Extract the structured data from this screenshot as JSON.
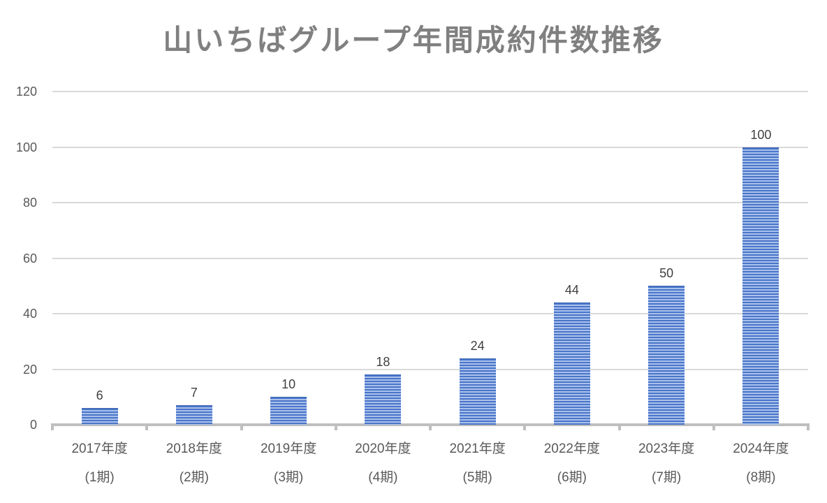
{
  "title": "山いちばグループ年間成約件数推移",
  "chart_data": {
    "type": "bar",
    "title": "山いちばグループ年間成約件数推移",
    "xlabel": "",
    "ylabel": "",
    "categories": [
      "2017年度 (1期)",
      "2018年度 (2期)",
      "2019年度 (3期)",
      "2020年度 (4期)",
      "2021年度 (5期)",
      "2022年度 (6期)",
      "2023年度 (7期)",
      "2024年度 (8期)"
    ],
    "category_lines": [
      [
        "2017年度",
        "(1期)"
      ],
      [
        "2018年度",
        "(2期)"
      ],
      [
        "2019年度",
        "(3期)"
      ],
      [
        "2020年度",
        "(4期)"
      ],
      [
        "2021年度",
        "(5期)"
      ],
      [
        "2022年度",
        "(6期)"
      ],
      [
        "2023年度",
        "(7期)"
      ],
      [
        "2024年度",
        "(8期)"
      ]
    ],
    "values": [
      6,
      7,
      10,
      18,
      24,
      44,
      50,
      100
    ],
    "data_labels": [
      "6",
      "7",
      "10",
      "18",
      "24",
      "44",
      "50",
      "100"
    ],
    "ylim": [
      0,
      120
    ],
    "yticks": [
      0,
      20,
      40,
      60,
      80,
      100,
      120
    ],
    "ytick_labels": [
      "0",
      "20",
      "40",
      "60",
      "80",
      "100",
      "120"
    ],
    "grid": true,
    "legend": null,
    "colors": {
      "bar_dark": "#4a75c8",
      "bar_light": "#a9c1ec",
      "gridline": "#d9d9d9",
      "axis": "#bfbfbf",
      "title": "#808080",
      "text": "#595959"
    }
  }
}
